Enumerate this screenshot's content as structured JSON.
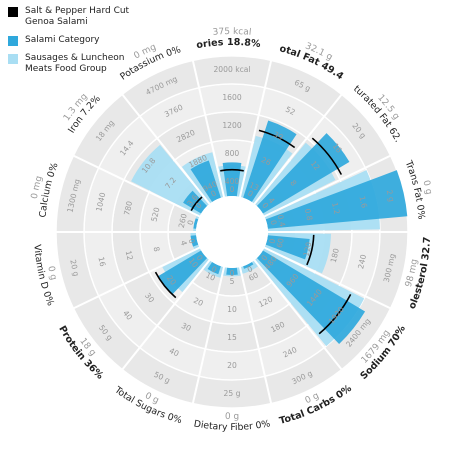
{
  "legend": [
    {
      "label": "Salt & Pepper Hard Cut Genoa Salami",
      "color": "#000000"
    },
    {
      "label": "Salami Category",
      "color": "#2fa8dc"
    },
    {
      "label": "Sausages & Luncheon Meats Food Group",
      "color": "#a9def3"
    }
  ],
  "chart_data": {
    "type": "radial-bar",
    "segments": [
      {
        "label": "Calories 18.8% DV*",
        "max_label": "375 kcal",
        "bold": true,
        "ticks": [
          "400",
          "800",
          "1200",
          "1600",
          "2000 kcal"
        ],
        "item": 0.188,
        "category": 0.24,
        "food_group": 0.22
      },
      {
        "label": "Total Fat 49.4%",
        "max_label": "32.1 g",
        "bold": true,
        "ticks": [
          "13",
          "26",
          "39",
          "52",
          "65 g"
        ],
        "item": 0.494,
        "category": 0.58,
        "food_group": 0.45
      },
      {
        "label": "Saturated Fat 62.5%",
        "max_label": "12.5 g",
        "bold": false,
        "ticks": [
          "4",
          "8",
          "12",
          "16",
          "20 g"
        ],
        "item": 0.625,
        "category": 0.72,
        "food_group": 0.57
      },
      {
        "label": "Trans Fat 0%",
        "max_label": "0 g",
        "bold": false,
        "ticks": [
          "0.4",
          "0.8",
          "1.2",
          "1.6",
          "2 g"
        ],
        "item": 0.0,
        "category": 1.0,
        "food_group": 0.8
      },
      {
        "label": "Cholesterol 32.7%",
        "max_label": "98 mg",
        "bold": true,
        "ticks": [
          "60",
          "120",
          "180",
          "240",
          "300 mg"
        ],
        "item": 0.327,
        "category": 0.3,
        "food_group": 0.45
      },
      {
        "label": "Sodium 70%",
        "max_label": "1679 mg",
        "bold": true,
        "ticks": [
          "480",
          "960",
          "1440",
          "1920",
          "2400 mg"
        ],
        "item": 0.7,
        "category": 0.85,
        "food_group": 0.8
      },
      {
        "label": "Total Carbs 0%",
        "max_label": "0 g",
        "bold": true,
        "ticks": [
          "60",
          "120",
          "180",
          "240",
          "300 g"
        ],
        "item": 0.0,
        "category": 0.02,
        "food_group": 0.05
      },
      {
        "label": "Dietary Fiber 0%",
        "max_label": "0 g",
        "bold": false,
        "ticks": [
          "5",
          "10",
          "15",
          "20",
          "25 g"
        ],
        "item": 0.0,
        "category": 0.05,
        "food_group": 0.06
      },
      {
        "label": "Total Sugars 0%",
        "max_label": "0 g",
        "bold": false,
        "ticks": [
          "10",
          "20",
          "30",
          "40",
          "50 g"
        ],
        "item": 0.0,
        "category": 0.06,
        "food_group": 0.08
      },
      {
        "label": "Protein 36%",
        "max_label": "18 g",
        "bold": true,
        "ticks": [
          "10",
          "20",
          "30",
          "40",
          "50 g"
        ],
        "item": 0.36,
        "category": 0.36,
        "food_group": 0.3
      },
      {
        "label": "Vitamin D 0%",
        "max_label": "0 g",
        "bold": false,
        "ticks": [
          "4",
          "8",
          "12",
          "16",
          "20 g"
        ],
        "item": 0.0,
        "category": 0.04,
        "food_group": 0.04
      },
      {
        "label": "Calcium 0%",
        "max_label": "0 mg",
        "bold": false,
        "ticks": [
          "260",
          "520",
          "780",
          "1040",
          "1300 mg"
        ],
        "item": 0.0,
        "category": 0.02,
        "food_group": 0.02
      },
      {
        "label": "Iron 7.2%",
        "max_label": "1.3 mg",
        "bold": false,
        "ticks": [
          "3.6",
          "7.2",
          "10.8",
          "14.4",
          "18 mg"
        ],
        "item": 0.072,
        "category": 0.15,
        "food_group": 0.55
      },
      {
        "label": "Potassium 0%",
        "max_label": "0 mg",
        "bold": false,
        "ticks": [
          "940",
          "1880",
          "2820",
          "3760",
          "4700 mg"
        ],
        "item": 0.0,
        "category": 0.28,
        "food_group": 0.33
      }
    ]
  }
}
